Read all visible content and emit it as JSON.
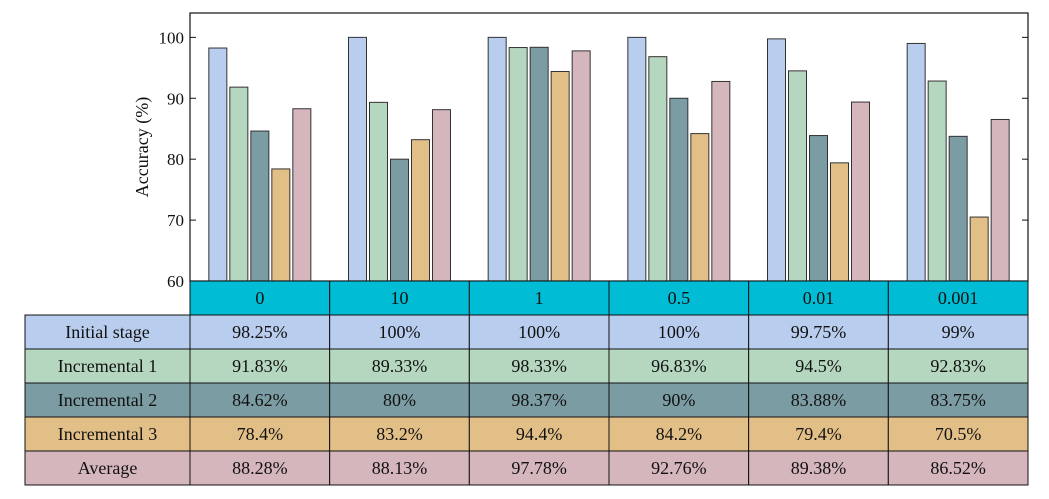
{
  "chart_data": {
    "type": "bar",
    "ylabel": "Accuracy (%)",
    "ylim": [
      60,
      104
    ],
    "yticks": [
      60,
      70,
      80,
      90,
      100
    ],
    "categories": [
      "0",
      "10",
      "1",
      "0.5",
      "0.01",
      "0.001"
    ],
    "series": [
      {
        "name": "Initial stage",
        "color": "#b9cdef",
        "values": [
          98.25,
          100,
          100,
          100,
          99.75,
          99
        ],
        "labels": [
          "98.25%",
          "100%",
          "100%",
          "100%",
          "99.75%",
          "99%"
        ]
      },
      {
        "name": "Incremental 1",
        "color": "#b6d7bf",
        "values": [
          91.83,
          89.33,
          98.33,
          96.83,
          94.5,
          92.83
        ],
        "labels": [
          "91.83%",
          "89.33%",
          "98.33%",
          "96.83%",
          "94.5%",
          "92.83%"
        ]
      },
      {
        "name": "Incremental 2",
        "color": "#7c9ca3",
        "values": [
          84.62,
          80,
          98.37,
          90,
          83.88,
          83.75
        ],
        "labels": [
          "84.62%",
          "80%",
          "98.37%",
          "90%",
          "83.88%",
          "83.75%"
        ]
      },
      {
        "name": "Incremental 3",
        "color": "#e3bf88",
        "values": [
          78.4,
          83.2,
          94.4,
          84.2,
          79.4,
          70.5
        ],
        "labels": [
          "78.4%",
          "83.2%",
          "94.4%",
          "84.2%",
          "79.4%",
          "70.5%"
        ]
      },
      {
        "name": "Average",
        "color": "#d6b6bd",
        "values": [
          88.28,
          88.13,
          97.78,
          92.76,
          89.38,
          86.52
        ],
        "labels": [
          "88.28%",
          "88.13%",
          "97.78%",
          "92.76%",
          "89.38%",
          "86.52%"
        ]
      }
    ],
    "category_row_color": "#00bcd4",
    "grid": false
  }
}
